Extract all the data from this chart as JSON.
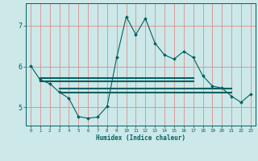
{
  "xlabel": "Humidex (Indice chaleur)",
  "bg_color": "#cce8e8",
  "grid_color": "#e08080",
  "line_color": "#006060",
  "xlim": [
    -0.5,
    23.5
  ],
  "ylim": [
    4.55,
    7.55
  ],
  "yticks": [
    5,
    6,
    7
  ],
  "xticks": [
    0,
    1,
    2,
    3,
    4,
    5,
    6,
    7,
    8,
    9,
    10,
    11,
    12,
    13,
    14,
    15,
    16,
    17,
    18,
    19,
    20,
    21,
    22,
    23
  ],
  "main_x": [
    0,
    1,
    2,
    3,
    4,
    5,
    6,
    7,
    8,
    9,
    10,
    11,
    12,
    13,
    14,
    15,
    16,
    17,
    18,
    19,
    20,
    21,
    22,
    23
  ],
  "main_y": [
    6.02,
    5.67,
    5.58,
    5.37,
    5.22,
    4.77,
    4.73,
    4.76,
    5.02,
    6.22,
    7.22,
    6.78,
    7.18,
    6.57,
    6.28,
    6.18,
    6.37,
    6.22,
    5.77,
    5.52,
    5.47,
    5.27,
    5.12,
    5.32
  ],
  "hline1_x": [
    1,
    17
  ],
  "hline1_y": [
    5.72,
    5.72
  ],
  "hline2_x": [
    1,
    17
  ],
  "hline2_y": [
    5.63,
    5.63
  ],
  "hline3_x": [
    3,
    21
  ],
  "hline3_y": [
    5.45,
    5.45
  ],
  "hline4_x": [
    3,
    21
  ],
  "hline4_y": [
    5.35,
    5.35
  ]
}
